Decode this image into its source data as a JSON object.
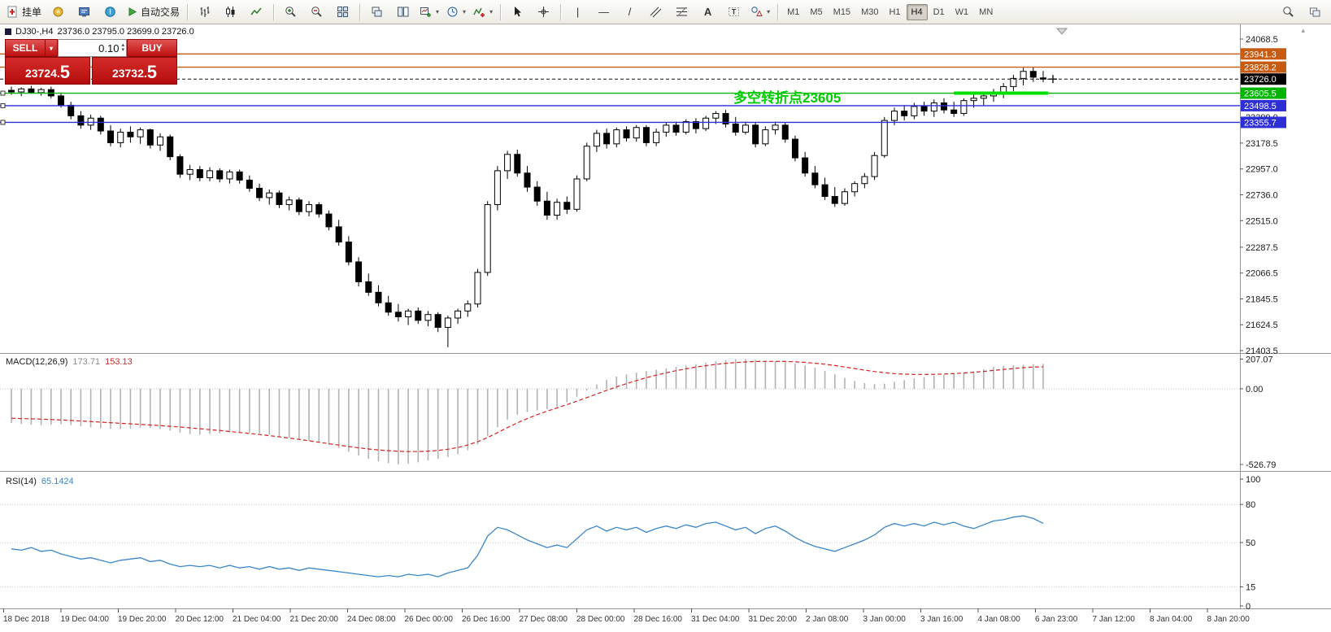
{
  "toolbar": {
    "new_order_label": "挂单",
    "autotrade_label": "自动交易",
    "active_timeframe": "H4",
    "timeframes": [
      {
        "label": "M1"
      },
      {
        "label": "M5"
      },
      {
        "label": "M15"
      },
      {
        "label": "M30"
      },
      {
        "label": "H1"
      },
      {
        "label": "H4"
      },
      {
        "label": "D1"
      },
      {
        "label": "W1"
      },
      {
        "label": "MN"
      }
    ]
  },
  "order_panel": {
    "sell_label": "SELL",
    "buy_label": "BUY",
    "volume": "0.10",
    "sell_price_main": "23724.",
    "sell_price_pip": "5",
    "buy_price_main": "23732.",
    "buy_price_pip": "5"
  },
  "chart": {
    "symbol_title": "DJ30-,H4",
    "ohlc_text": "23736.0 23795.0 23699.0 23726.0",
    "annotation": {
      "text": "多空转折点23605",
      "color": "#00CC00"
    },
    "current_price_label": "23726.0",
    "hlines": [
      {
        "price": 23941.3,
        "label": "23941.3",
        "color": "#C75B12",
        "style": "solid"
      },
      {
        "price": 23828.2,
        "label": "23828.2",
        "color": "#C75B12",
        "style": "solid"
      },
      {
        "price": 23726.0,
        "label": "23726.0",
        "color": "#111111",
        "style": "dashed",
        "current": true
      },
      {
        "price": 23605.5,
        "label": "23605.5",
        "color": "#00B400",
        "style": "solid",
        "handles": true
      },
      {
        "price": 23498.5,
        "label": "23498.5",
        "color": "#2F2FD6",
        "style": "solid",
        "handles": true
      },
      {
        "price": 23355.7,
        "label": "23355.7",
        "color": "#2F2FD6",
        "style": "solid",
        "handles": true
      }
    ],
    "pivot_segment": {
      "price": 23605.5,
      "from_index": 95,
      "to_index": 104,
      "color": "#00E000"
    },
    "price_ticks": [
      "24068.5",
      "23399.0",
      "23178.5",
      "22957.0",
      "22736.0",
      "22515.0",
      "22287.5",
      "22066.5",
      "21845.5",
      "21624.5",
      "21403.5"
    ]
  },
  "macd_panel": {
    "name": "MACD(12,26,9)",
    "main_value": "173.71",
    "signal_value": "153.13",
    "axis_ticks": [
      "207.07",
      "0.00",
      "-526.79"
    ]
  },
  "rsi_panel": {
    "name": "RSI(14)",
    "value": "65.1424",
    "axis_ticks": [
      "100",
      "80",
      "50",
      "15",
      "0"
    ],
    "levels": [
      80,
      50,
      15
    ]
  },
  "chart_data": {
    "type": "candlestick",
    "symbol": "DJ30-",
    "timeframe": "H4",
    "price_range": [
      21403.5,
      24068.5
    ],
    "candles": [
      [
        23630,
        23662,
        23592,
        23616
      ],
      [
        23616,
        23655,
        23580,
        23642
      ],
      [
        23642,
        23668,
        23601,
        23610
      ],
      [
        23610,
        23652,
        23584,
        23636
      ],
      [
        23636,
        23661,
        23562,
        23582
      ],
      [
        23582,
        23612,
        23482,
        23502
      ],
      [
        23502,
        23532,
        23382,
        23412
      ],
      [
        23412,
        23452,
        23302,
        23332
      ],
      [
        23332,
        23422,
        23292,
        23392
      ],
      [
        23392,
        23412,
        23252,
        23282
      ],
      [
        23282,
        23332,
        23152,
        23182
      ],
      [
        23182,
        23302,
        23142,
        23272
      ],
      [
        23272,
        23322,
        23182,
        23232
      ],
      [
        23232,
        23312,
        23172,
        23292
      ],
      [
        23292,
        23302,
        23132,
        23162
      ],
      [
        23162,
        23262,
        23112,
        23232
      ],
      [
        23232,
        23252,
        23032,
        23062
      ],
      [
        23062,
        23082,
        22882,
        22912
      ],
      [
        22912,
        22992,
        22862,
        22952
      ],
      [
        22952,
        22982,
        22852,
        22882
      ],
      [
        22882,
        22972,
        22852,
        22942
      ],
      [
        22942,
        22962,
        22842,
        22872
      ],
      [
        22872,
        22952,
        22832,
        22932
      ],
      [
        22932,
        22952,
        22832,
        22862
      ],
      [
        22862,
        22902,
        22762,
        22792
      ],
      [
        22792,
        22832,
        22682,
        22712
      ],
      [
        22712,
        22782,
        22652,
        22752
      ],
      [
        22752,
        22772,
        22622,
        22652
      ],
      [
        22652,
        22722,
        22602,
        22692
      ],
      [
        22692,
        22712,
        22562,
        22592
      ],
      [
        22592,
        22682,
        22552,
        22652
      ],
      [
        22652,
        22672,
        22542,
        22572
      ],
      [
        22572,
        22602,
        22432,
        22462
      ],
      [
        22462,
        22522,
        22302,
        22332
      ],
      [
        22332,
        22382,
        22132,
        22162
      ],
      [
        22162,
        22202,
        21952,
        21992
      ],
      [
        21992,
        22062,
        21872,
        21902
      ],
      [
        21902,
        21962,
        21782,
        21812
      ],
      [
        21812,
        21872,
        21702,
        21732
      ],
      [
        21732,
        21802,
        21652,
        21692
      ],
      [
        21692,
        21762,
        21622,
        21742
      ],
      [
        21742,
        21772,
        21632,
        21662
      ],
      [
        21662,
        21742,
        21612,
        21712
      ],
      [
        21712,
        21732,
        21562,
        21602
      ],
      [
        21602,
        21702,
        21432,
        21682
      ],
      [
        21682,
        21762,
        21632,
        21742
      ],
      [
        21742,
        21832,
        21692,
        21802
      ],
      [
        21802,
        22102,
        21772,
        22072
      ],
      [
        22072,
        22682,
        22042,
        22652
      ],
      [
        22652,
        22982,
        22602,
        22942
      ],
      [
        22942,
        23112,
        22872,
        23082
      ],
      [
        23082,
        23122,
        22892,
        22922
      ],
      [
        22922,
        22982,
        22762,
        22802
      ],
      [
        22802,
        22852,
        22642,
        22682
      ],
      [
        22682,
        22762,
        22522,
        22562
      ],
      [
        22562,
        22702,
        22522,
        22672
      ],
      [
        22672,
        22722,
        22572,
        22612
      ],
      [
        22612,
        22902,
        22592,
        22872
      ],
      [
        22872,
        23182,
        22852,
        23152
      ],
      [
        23152,
        23292,
        23102,
        23262
      ],
      [
        23262,
        23302,
        23132,
        23172
      ],
      [
        23172,
        23312,
        23142,
        23292
      ],
      [
        23292,
        23322,
        23192,
        23222
      ],
      [
        23222,
        23332,
        23192,
        23312
      ],
      [
        23312,
        23332,
        23152,
        23182
      ],
      [
        23182,
        23302,
        23152,
        23272
      ],
      [
        23272,
        23352,
        23232,
        23332
      ],
      [
        23332,
        23362,
        23242,
        23272
      ],
      [
        23272,
        23382,
        23252,
        23362
      ],
      [
        23362,
        23392,
        23262,
        23302
      ],
      [
        23302,
        23412,
        23282,
        23392
      ],
      [
        23392,
        23452,
        23342,
        23432
      ],
      [
        23432,
        23462,
        23312,
        23342
      ],
      [
        23342,
        23402,
        23242,
        23272
      ],
      [
        23272,
        23362,
        23252,
        23332
      ],
      [
        23332,
        23352,
        23142,
        23172
      ],
      [
        23172,
        23322,
        23152,
        23292
      ],
      [
        23292,
        23362,
        23252,
        23332
      ],
      [
        23332,
        23352,
        23182,
        23212
      ],
      [
        23212,
        23242,
        23022,
        23052
      ],
      [
        23052,
        23102,
        22892,
        22922
      ],
      [
        22922,
        22982,
        22792,
        22822
      ],
      [
        22822,
        22882,
        22692,
        22722
      ],
      [
        22722,
        22802,
        22632,
        22662
      ],
      [
        22662,
        22792,
        22642,
        22762
      ],
      [
        22762,
        22852,
        22722,
        22832
      ],
      [
        22832,
        22922,
        22792,
        22892
      ],
      [
        22892,
        23102,
        22862,
        23072
      ],
      [
        23072,
        23402,
        23052,
        23372
      ],
      [
        23372,
        23482,
        23332,
        23452
      ],
      [
        23452,
        23502,
        23372,
        23412
      ],
      [
        23412,
        23522,
        23382,
        23492
      ],
      [
        23492,
        23532,
        23412,
        23452
      ],
      [
        23452,
        23552,
        23402,
        23522
      ],
      [
        23522,
        23562,
        23432,
        23462
      ],
      [
        23462,
        23532,
        23402,
        23432
      ],
      [
        23432,
        23562,
        23412,
        23542
      ],
      [
        23542,
        23592,
        23482,
        23562
      ],
      [
        23562,
        23612,
        23502,
        23582
      ],
      [
        23582,
        23642,
        23532,
        23612
      ],
      [
        23612,
        23692,
        23562,
        23662
      ],
      [
        23662,
        23762,
        23622,
        23732
      ],
      [
        23732,
        23822,
        23672,
        23792
      ],
      [
        23792,
        23825,
        23702,
        23742
      ],
      [
        23736,
        23795,
        23699,
        23726
      ]
    ],
    "macd": {
      "hist": [
        -238,
        -245,
        -250,
        -254,
        -250,
        -246,
        -252,
        -260,
        -268,
        -274,
        -278,
        -280,
        -276,
        -270,
        -272,
        -280,
        -292,
        -305,
        -315,
        -320,
        -314,
        -309,
        -305,
        -302,
        -305,
        -312,
        -320,
        -330,
        -340,
        -352,
        -362,
        -374,
        -390,
        -412,
        -438,
        -465,
        -488,
        -505,
        -518,
        -526,
        -522,
        -512,
        -500,
        -488,
        -475,
        -455,
        -428,
        -388,
        -330,
        -268,
        -215,
        -182,
        -162,
        -150,
        -142,
        -125,
        -95,
        -55,
        -12,
        30,
        62,
        85,
        100,
        113,
        123,
        133,
        142,
        152,
        162,
        172,
        182,
        192,
        200,
        206,
        207.07,
        202,
        196,
        190,
        184,
        176,
        163,
        146,
        125,
        100,
        76,
        55,
        40,
        32,
        36,
        48,
        60,
        72,
        82,
        92,
        98,
        104,
        112,
        122,
        136,
        152,
        160,
        165,
        168,
        171,
        173.71
      ],
      "signal": [
        -205,
        -207,
        -209,
        -211,
        -214,
        -217,
        -220,
        -224,
        -228,
        -232,
        -236,
        -240,
        -244,
        -248,
        -252,
        -256,
        -261,
        -266,
        -272,
        -278,
        -284,
        -290,
        -297,
        -304,
        -311,
        -318,
        -326,
        -334,
        -343,
        -352,
        -362,
        -372,
        -382,
        -392,
        -402,
        -411,
        -419,
        -426,
        -431,
        -435,
        -437,
        -437,
        -434,
        -429,
        -421,
        -409,
        -391,
        -368,
        -339,
        -305,
        -270,
        -237,
        -207,
        -180,
        -156,
        -133,
        -110,
        -86,
        -61,
        -36,
        -11,
        13,
        36,
        57,
        77,
        95,
        111,
        126,
        139,
        151,
        161,
        170,
        177,
        183,
        187,
        190,
        191,
        191,
        190,
        188,
        184,
        178,
        171,
        162,
        152,
        141,
        130,
        120,
        112,
        106,
        102,
        100,
        100,
        101,
        103,
        106,
        110,
        115,
        121,
        128,
        135,
        141,
        147,
        151,
        153.13
      ]
    },
    "rsi": {
      "values": [
        45,
        44,
        46,
        43,
        44,
        41,
        39,
        37,
        38,
        36,
        34,
        36,
        37,
        38,
        35,
        36,
        33,
        31,
        32,
        31,
        32,
        30,
        32,
        30,
        31,
        29,
        31,
        29,
        30,
        28,
        30,
        29,
        28,
        27,
        26,
        25,
        24,
        23,
        24,
        23,
        25,
        24,
        25,
        23,
        26,
        28,
        30,
        40,
        55,
        62,
        60,
        56,
        52,
        49,
        46,
        48,
        46,
        53,
        60,
        63,
        59,
        62,
        60,
        62,
        58,
        61,
        63,
        61,
        64,
        62,
        65,
        66,
        63,
        60,
        62,
        57,
        61,
        63,
        59,
        54,
        50,
        47,
        45,
        43,
        46,
        49,
        52,
        56,
        62,
        65,
        63,
        65,
        63,
        66,
        64,
        66,
        63,
        61,
        64,
        67,
        68,
        70,
        71,
        69,
        65.1424
      ]
    },
    "x_labels": [
      "18 Dec 2018",
      "19 Dec 04:00",
      "19 Dec 20:00",
      "20 Dec 12:00",
      "21 Dec 04:00",
      "21 Dec 20:00",
      "24 Dec 08:00",
      "26 Dec 00:00",
      "26 Dec 16:00",
      "27 Dec 08:00",
      "28 Dec 00:00",
      "28 Dec 16:00",
      "31 Dec 04:00",
      "31 Dec 20:00",
      "2 Jan 08:00",
      "3 Jan 00:00",
      "3 Jan 16:00",
      "4 Jan 08:00",
      "6 Jan 23:00",
      "7 Jan 12:00",
      "8 Jan 04:00",
      "8 Jan 20:00"
    ]
  }
}
